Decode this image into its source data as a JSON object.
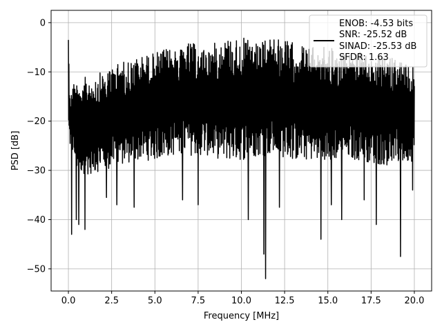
{
  "chart_data": {
    "type": "line",
    "title": "",
    "xlabel": "Frequency [MHz]",
    "ylabel": "PSD [dB]",
    "xlim": [
      -1.0,
      21.0
    ],
    "ylim": [
      -54.5,
      2.5
    ],
    "xticks": [
      0.0,
      2.5,
      5.0,
      7.5,
      10.0,
      12.5,
      15.0,
      17.5,
      20.0
    ],
    "xtick_labels": [
      "0.0",
      "2.5",
      "5.0",
      "7.5",
      "10.0",
      "12.5",
      "15.0",
      "17.5",
      "20.0"
    ],
    "yticks": [
      0,
      -10,
      -20,
      -30,
      -40,
      -50
    ],
    "ytick_labels": [
      "0",
      "−10",
      "−20",
      "−30",
      "−40",
      "−50"
    ],
    "grid": true,
    "legend_position": "top-right",
    "legend": [
      "ENOB: -4.53 bits",
      "SNR: -25.52 dB",
      "SINAD: -25.53 dB",
      "SFDR: 1.63"
    ],
    "series": [
      {
        "color": "#000000",
        "x_range": [
          0.0,
          20.0
        ],
        "envelope_upper": [
          [
            0.0,
            -3.5
          ],
          [
            0.1,
            -14
          ],
          [
            0.3,
            -12
          ],
          [
            1.0,
            -11
          ],
          [
            2.0,
            -10
          ],
          [
            3.0,
            -8
          ],
          [
            4.0,
            -7
          ],
          [
            5.0,
            -6
          ],
          [
            6.0,
            -5
          ],
          [
            7.0,
            -4
          ],
          [
            8.0,
            -5
          ],
          [
            9.0,
            -3
          ],
          [
            10.0,
            -3
          ],
          [
            11.0,
            -4
          ],
          [
            12.0,
            -3
          ],
          [
            13.0,
            -4
          ],
          [
            14.0,
            -5
          ],
          [
            15.0,
            -5
          ],
          [
            16.0,
            -6
          ],
          [
            17.0,
            -6
          ],
          [
            18.0,
            -7
          ],
          [
            19.0,
            -7
          ],
          [
            20.0,
            -9
          ]
        ],
        "envelope_lower": [
          [
            0.0,
            -24
          ],
          [
            0.5,
            -30
          ],
          [
            1.0,
            -31
          ],
          [
            2.0,
            -30
          ],
          [
            3.0,
            -29
          ],
          [
            4.0,
            -28
          ],
          [
            5.0,
            -28
          ],
          [
            6.0,
            -27
          ],
          [
            7.0,
            -27
          ],
          [
            8.0,
            -27
          ],
          [
            9.0,
            -28
          ],
          [
            10.0,
            -28
          ],
          [
            11.0,
            -27
          ],
          [
            12.0,
            -27
          ],
          [
            13.0,
            -28
          ],
          [
            14.0,
            -28
          ],
          [
            15.0,
            -28
          ],
          [
            16.0,
            -28
          ],
          [
            17.0,
            -28
          ],
          [
            18.0,
            -29
          ],
          [
            19.0,
            -29
          ],
          [
            20.0,
            -28
          ]
        ],
        "deep_dips": [
          [
            0.18,
            -43
          ],
          [
            0.45,
            -40
          ],
          [
            0.6,
            -41
          ],
          [
            0.95,
            -42
          ],
          [
            2.2,
            -35.5
          ],
          [
            2.8,
            -37
          ],
          [
            3.8,
            -37.5
          ],
          [
            6.6,
            -36
          ],
          [
            7.5,
            -37
          ],
          [
            10.4,
            -40
          ],
          [
            11.4,
            -52
          ],
          [
            11.3,
            -47
          ],
          [
            12.2,
            -37.5
          ],
          [
            14.6,
            -44
          ],
          [
            15.2,
            -37
          ],
          [
            15.8,
            -40
          ],
          [
            17.1,
            -36
          ],
          [
            17.8,
            -41
          ],
          [
            19.2,
            -47.5
          ],
          [
            19.9,
            -34
          ]
        ]
      }
    ]
  }
}
